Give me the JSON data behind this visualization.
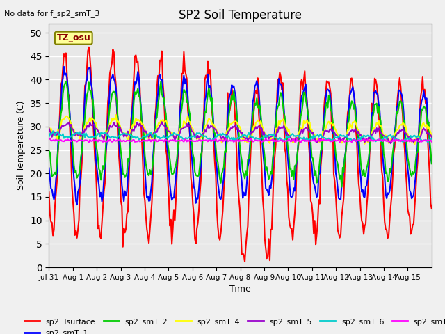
{
  "title": "SP2 Soil Temperature",
  "xlabel": "Time",
  "ylabel": "Soil Temperature (C)",
  "note": "No data for f_sp2_smT_3",
  "tz_label": "TZ_osu",
  "ylim": [
    0,
    52
  ],
  "yticks": [
    0,
    5,
    10,
    15,
    20,
    25,
    30,
    35,
    40,
    45,
    50
  ],
  "xticklabels": [
    "Jul 31",
    "Aug 1",
    "Aug 2",
    "Aug 3",
    "Aug 4",
    "Aug 5",
    "Aug 6",
    "Aug 7",
    "Aug 8",
    "Aug 9",
    "Aug 10",
    "Aug 11",
    "Aug 12",
    "Aug 13",
    "Aug 14",
    "Aug 15"
  ],
  "n_days": 16,
  "series_colors": {
    "sp2_Tsurface": "#ff0000",
    "sp2_smT_1": "#0000ff",
    "sp2_smT_2": "#00cc00",
    "sp2_smT_4": "#ffff00",
    "sp2_smT_5": "#9900cc",
    "sp2_smT_6": "#00cccc",
    "sp2_smT_7": "#ff00ff"
  },
  "bg_color": "#e8e8e8",
  "grid_color": "#ffffff",
  "line_width": 1.5
}
